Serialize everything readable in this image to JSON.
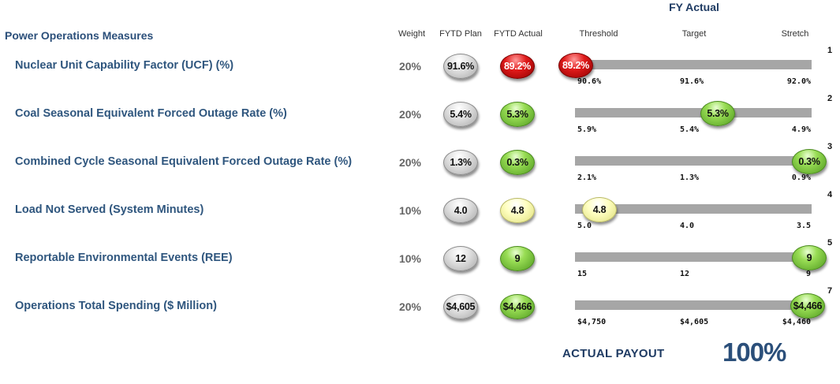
{
  "header": {
    "fy_actual": "FY Actual",
    "section_title": "Power Operations Measures",
    "columns": {
      "weight": "Weight",
      "plan": "FYTD Plan",
      "actual": "FYTD Actual",
      "threshold": "Threshold",
      "target": "Target",
      "stretch": "Stretch"
    }
  },
  "colors": {
    "gray": "#d0d0d0",
    "green": "#7fcc3a",
    "red": "#d41414",
    "yellow": "#ffffb0",
    "track": "#a6a6a6",
    "label": "#2f567e"
  },
  "rows": [
    {
      "label": "Nuclear Unit Capability Factor (UCF) (%)",
      "weight": "20%",
      "plan": "91.6%",
      "actual": "89.2%",
      "actual_color": "red",
      "fy_actual": "89.2%",
      "fy_color": "red",
      "position": 0.0,
      "threshold": "90.6%",
      "target": "91.6%",
      "stretch": "92.0%",
      "rank": "1"
    },
    {
      "label": "Coal Seasonal Equivalent Forced Outage Rate (%)",
      "weight": "20%",
      "plan": "5.4%",
      "actual": "5.3%",
      "actual_color": "green",
      "fy_actual": "5.3%",
      "fy_color": "green",
      "position": 0.6,
      "threshold": "5.9%",
      "target": "5.4%",
      "stretch": "4.9%",
      "rank": "2"
    },
    {
      "label": "Combined Cycle Seasonal Equivalent Forced Outage Rate (%)",
      "weight": "20%",
      "plan": "1.3%",
      "actual": "0.3%",
      "actual_color": "green",
      "fy_actual": "0.3%",
      "fy_color": "green",
      "position": 1.0,
      "threshold": "2.1%",
      "target": "1.3%",
      "stretch": "0.9%",
      "rank": "3"
    },
    {
      "label": "Load Not Served (System Minutes)",
      "weight": "10%",
      "plan": "4.0",
      "actual": "4.8",
      "actual_color": "yellow",
      "fy_actual": "4.8",
      "fy_color": "yellow",
      "position": 0.1,
      "threshold": "5.0",
      "target": "4.0",
      "stretch": "3.5",
      "rank": "4"
    },
    {
      "label": "Reportable Environmental Events (REE)",
      "weight": "10%",
      "plan": "12",
      "actual": "9",
      "actual_color": "green",
      "fy_actual": "9",
      "fy_color": "green",
      "position": 1.0,
      "threshold": "15",
      "target": "12",
      "stretch": "9",
      "rank": "5"
    },
    {
      "label": "Operations Total Spending ($ Million)",
      "weight": "20%",
      "plan": "$4,605",
      "actual": "$4,466",
      "actual_color": "green",
      "fy_actual": "$4,466",
      "fy_color": "green",
      "position": 0.98,
      "threshold": "$4,750",
      "target": "$4,605",
      "stretch": "$4,460",
      "rank": "7"
    }
  ],
  "payout": {
    "label": "ACTUAL PAYOUT",
    "value": "100%"
  }
}
